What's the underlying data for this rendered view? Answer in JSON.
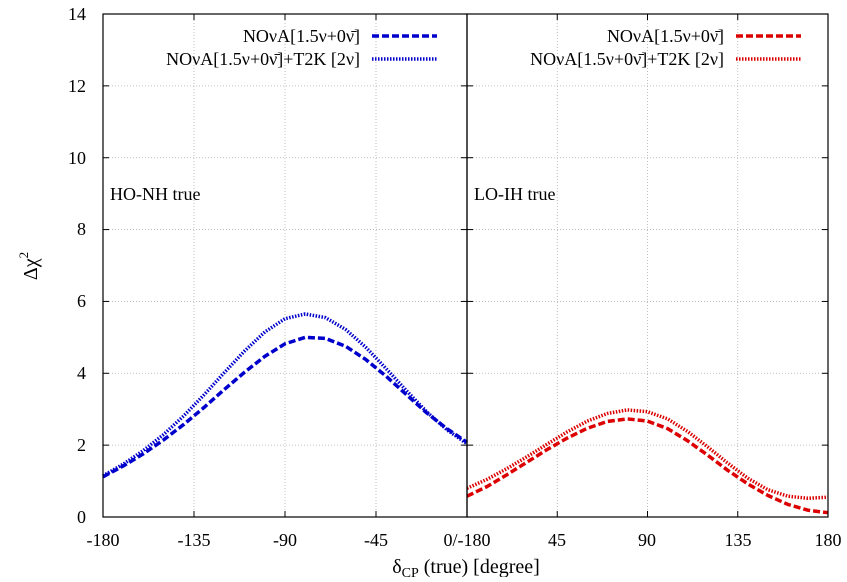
{
  "chart_data": [
    {
      "type": "line",
      "panel": "left",
      "annotation": "HO-NH true",
      "xlim": [
        -180,
        0
      ],
      "ylim": [
        0,
        14
      ],
      "xticks": [
        -180,
        -135,
        -90,
        -45,
        0
      ],
      "yticks": [
        0,
        2,
        4,
        6,
        8,
        10,
        12,
        14
      ],
      "grid": true,
      "legend_position": "top-right",
      "series": [
        {
          "name": "NOνA[1.5ν+0ν̄]",
          "color": "#0000cc",
          "style": "dashed",
          "x": [
            -180,
            -170,
            -160,
            -150,
            -140,
            -130,
            -120,
            -110,
            -100,
            -90,
            -80,
            -70,
            -60,
            -50,
            -40,
            -30,
            -20,
            -10,
            0
          ],
          "y": [
            1.12,
            1.42,
            1.76,
            2.15,
            2.58,
            3.05,
            3.55,
            4.03,
            4.47,
            4.82,
            5.0,
            4.97,
            4.75,
            4.38,
            3.92,
            3.41,
            2.9,
            2.46,
            2.08
          ]
        },
        {
          "name": "NOνA[1.5ν+0ν̄]+T2K [2ν]",
          "color": "#0000cc",
          "style": "dotted",
          "x": [
            -180,
            -170,
            -160,
            -150,
            -140,
            -130,
            -120,
            -110,
            -100,
            -90,
            -80,
            -70,
            -60,
            -50,
            -40,
            -30,
            -20,
            -10,
            0
          ],
          "y": [
            1.15,
            1.47,
            1.85,
            2.3,
            2.82,
            3.4,
            4.02,
            4.62,
            5.15,
            5.52,
            5.65,
            5.55,
            5.22,
            4.72,
            4.13,
            3.52,
            2.93,
            2.43,
            2.04
          ]
        }
      ]
    },
    {
      "type": "line",
      "panel": "right",
      "annotation": "LO-IH true",
      "xlim": [
        0,
        180
      ],
      "ylim": [
        0,
        14
      ],
      "xticks": [
        0,
        45,
        90,
        135,
        180
      ],
      "grid": true,
      "legend_position": "top-right",
      "series": [
        {
          "name": "NOνA[1.5ν+0ν̄]",
          "color": "#dd0000",
          "style": "dashed",
          "x": [
            0,
            10,
            20,
            30,
            40,
            50,
            60,
            70,
            80,
            90,
            100,
            110,
            120,
            130,
            140,
            150,
            160,
            170,
            180
          ],
          "y": [
            0.58,
            0.85,
            1.18,
            1.53,
            1.88,
            2.2,
            2.47,
            2.66,
            2.73,
            2.67,
            2.46,
            2.12,
            1.72,
            1.3,
            0.92,
            0.6,
            0.35,
            0.19,
            0.12
          ]
        },
        {
          "name": "NOνA[1.5ν+0ν̄]+T2K [2ν]",
          "color": "#dd0000",
          "style": "dotted",
          "x": [
            0,
            10,
            20,
            30,
            40,
            50,
            60,
            70,
            80,
            90,
            100,
            110,
            120,
            130,
            140,
            150,
            160,
            170,
            180
          ],
          "y": [
            0.8,
            1.05,
            1.35,
            1.68,
            2.03,
            2.37,
            2.67,
            2.88,
            2.98,
            2.93,
            2.73,
            2.38,
            1.95,
            1.5,
            1.08,
            0.76,
            0.58,
            0.52,
            0.55
          ]
        }
      ]
    }
  ],
  "axes": {
    "ylabel_main": "Δχ",
    "ylabel_sup": "2",
    "xlabel_main": "δ",
    "xlabel_sub": "CP",
    "xlabel_rest": " (true) [degree]",
    "left_tick_labels": [
      "-180",
      "-135",
      "-90",
      "-45"
    ],
    "shared_tick_label": "0/-180",
    "right_tick_labels": [
      "45",
      "90",
      "135",
      "180"
    ],
    "y_tick_labels": [
      "0",
      "2",
      "4",
      "6",
      "8",
      "10",
      "12",
      "14"
    ]
  }
}
